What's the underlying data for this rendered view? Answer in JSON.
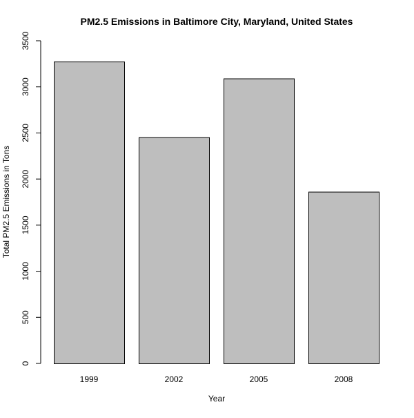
{
  "chart_data": {
    "type": "bar",
    "title": "PM2.5 Emissions in Baltimore City, Maryland, United States",
    "xlabel": "Year",
    "ylabel": "Total PM2.5 Emissions in Tons",
    "categories": [
      "1999",
      "2002",
      "2005",
      "2008"
    ],
    "values": [
      3274.18,
      2453.92,
      3091.35,
      1862.28
    ],
    "ylim": [
      0,
      3500
    ],
    "yticks": [
      0,
      500,
      1000,
      1500,
      2000,
      2500,
      3000,
      3500
    ],
    "bar_color": "#bebebe",
    "bar_edge_color": "#000000",
    "grid": false,
    "legend": "none"
  }
}
